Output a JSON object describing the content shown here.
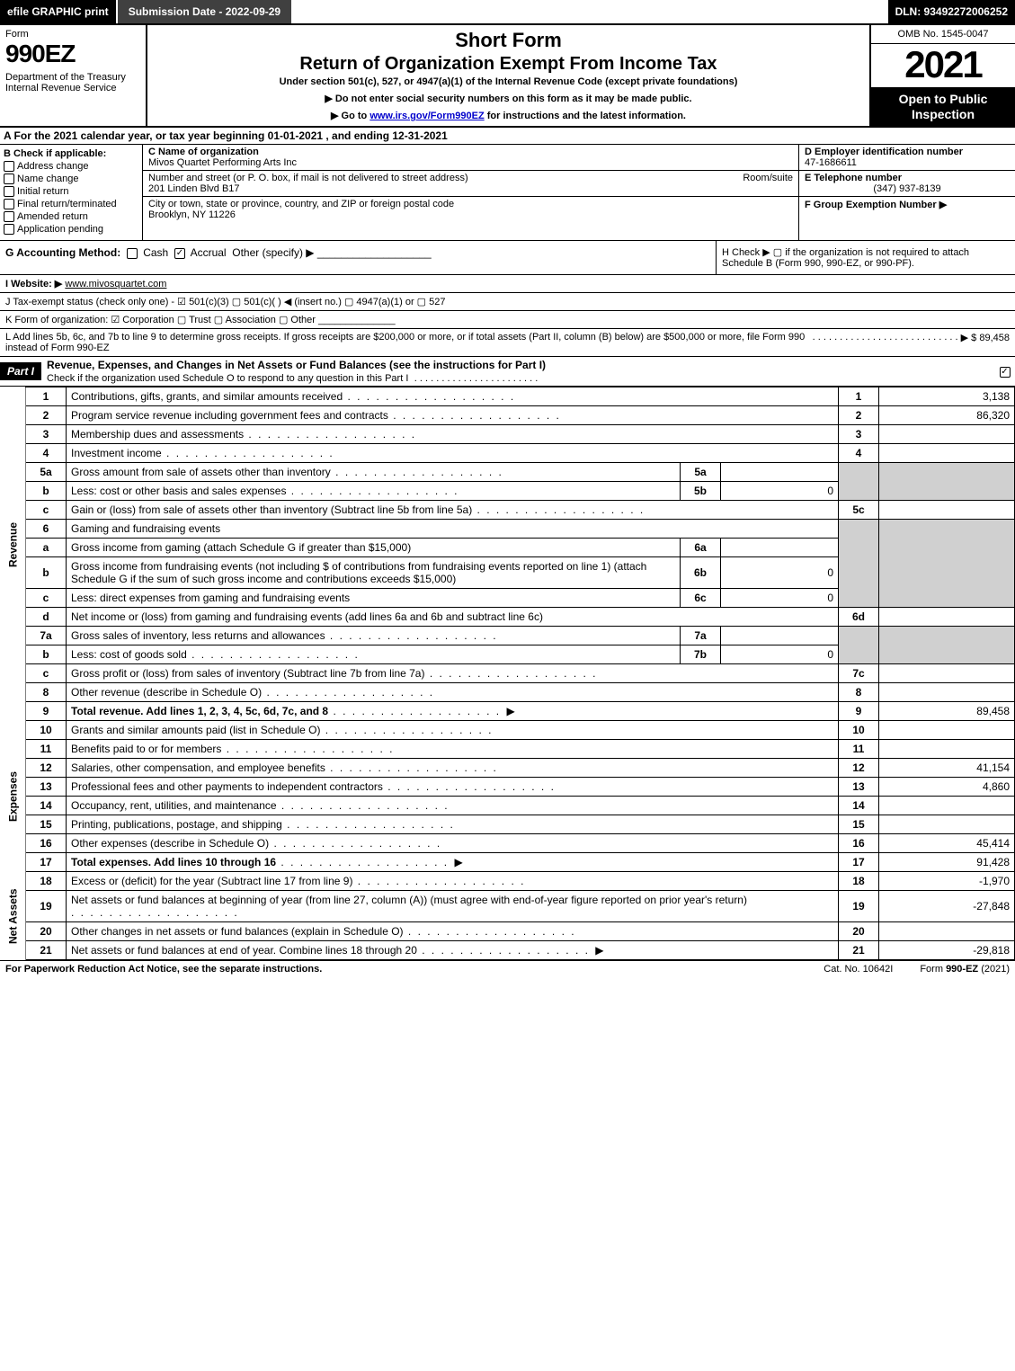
{
  "topbar": {
    "efile": "efile GRAPHIC print",
    "submission": "Submission Date - 2022-09-29",
    "dln": "DLN: 93492272006252"
  },
  "header": {
    "form_label": "Form",
    "form_number": "990EZ",
    "dept": "Department of the Treasury\nInternal Revenue Service",
    "short_form": "Short Form",
    "main_title": "Return of Organization Exempt From Income Tax",
    "subtitle": "Under section 501(c), 527, or 4947(a)(1) of the Internal Revenue Code (except private foundations)",
    "instruct1": "▶ Do not enter social security numbers on this form as it may be made public.",
    "instruct2_pre": "▶ Go to ",
    "instruct2_link": "www.irs.gov/Form990EZ",
    "instruct2_post": " for instructions and the latest information.",
    "omb": "OMB No. 1545-0047",
    "year": "2021",
    "open_public": "Open to Public Inspection"
  },
  "sectionA": "A  For the 2021 calendar year, or tax year beginning 01-01-2021 , and ending 12-31-2021",
  "sectionB": {
    "label": "B  Check if applicable:",
    "items": [
      "Address change",
      "Name change",
      "Initial return",
      "Final return/terminated",
      "Amended return",
      "Application pending"
    ]
  },
  "sectionC": {
    "name_lbl": "C Name of organization",
    "name_val": "Mivos Quartet Performing Arts Inc",
    "street_lbl": "Number and street (or P. O. box, if mail is not delivered to street address)",
    "room_lbl": "Room/suite",
    "street_val": "201 Linden Blvd B17",
    "city_lbl": "City or town, state or province, country, and ZIP or foreign postal code",
    "city_val": "Brooklyn, NY  11226"
  },
  "sectionD": {
    "ein_lbl": "D Employer identification number",
    "ein_val": "47-1686611",
    "tel_lbl": "E Telephone number",
    "tel_val": "(347) 937-8139",
    "grp_lbl": "F Group Exemption Number  ▶"
  },
  "rowG": {
    "lbl": "G Accounting Method:",
    "cash": "Cash",
    "accrual": "Accrual",
    "other": "Other (specify) ▶"
  },
  "rowH": {
    "text": "H  Check ▶  ▢  if the organization is not required to attach Schedule B (Form 990, 990-EZ, or 990-PF)."
  },
  "rowI": {
    "lbl": "I Website: ▶",
    "val": "www.mivosquartet.com"
  },
  "rowJ": "J Tax-exempt status (check only one) -  ☑ 501(c)(3)  ▢ 501(c)(  ) ◀ (insert no.)  ▢ 4947(a)(1) or  ▢ 527",
  "rowK": "K Form of organization:  ☑ Corporation  ▢ Trust  ▢ Association  ▢ Other",
  "rowL": {
    "text": "L Add lines 5b, 6c, and 7b to line 9 to determine gross receipts. If gross receipts are $200,000 or more, or if total assets (Part II, column (B) below) are $500,000 or more, file Form 990 instead of Form 990-EZ",
    "amount": "▶ $ 89,458"
  },
  "part1": {
    "label": "Part I",
    "title": "Revenue, Expenses, and Changes in Net Assets or Fund Balances (see the instructions for Part I)",
    "sub": "Check if the organization used Schedule O to respond to any question in this Part I"
  },
  "sideLabels": {
    "revenue": "Revenue",
    "expenses": "Expenses",
    "netassets": "Net Assets"
  },
  "lines": {
    "l1": {
      "n": "1",
      "d": "Contributions, gifts, grants, and similar amounts received",
      "bn": "1",
      "bv": "3,138"
    },
    "l2": {
      "n": "2",
      "d": "Program service revenue including government fees and contracts",
      "bn": "2",
      "bv": "86,320"
    },
    "l3": {
      "n": "3",
      "d": "Membership dues and assessments",
      "bn": "3",
      "bv": ""
    },
    "l4": {
      "n": "4",
      "d": "Investment income",
      "bn": "4",
      "bv": ""
    },
    "l5a": {
      "n": "5a",
      "d": "Gross amount from sale of assets other than inventory",
      "mn": "5a",
      "mv": ""
    },
    "l5b": {
      "n": "b",
      "d": "Less: cost or other basis and sales expenses",
      "mn": "5b",
      "mv": "0"
    },
    "l5c": {
      "n": "c",
      "d": "Gain or (loss) from sale of assets other than inventory (Subtract line 5b from line 5a)",
      "bn": "5c",
      "bv": ""
    },
    "l6": {
      "n": "6",
      "d": "Gaming and fundraising events"
    },
    "l6a": {
      "n": "a",
      "d": "Gross income from gaming (attach Schedule G if greater than $15,000)",
      "mn": "6a",
      "mv": ""
    },
    "l6b": {
      "n": "b",
      "d": "Gross income from fundraising events (not including $                 of contributions from fundraising events reported on line 1) (attach Schedule G if the sum of such gross income and contributions exceeds $15,000)",
      "mn": "6b",
      "mv": "0"
    },
    "l6c": {
      "n": "c",
      "d": "Less: direct expenses from gaming and fundraising events",
      "mn": "6c",
      "mv": "0"
    },
    "l6d": {
      "n": "d",
      "d": "Net income or (loss) from gaming and fundraising events (add lines 6a and 6b and subtract line 6c)",
      "bn": "6d",
      "bv": ""
    },
    "l7a": {
      "n": "7a",
      "d": "Gross sales of inventory, less returns and allowances",
      "mn": "7a",
      "mv": ""
    },
    "l7b": {
      "n": "b",
      "d": "Less: cost of goods sold",
      "mn": "7b",
      "mv": "0"
    },
    "l7c": {
      "n": "c",
      "d": "Gross profit or (loss) from sales of inventory (Subtract line 7b from line 7a)",
      "bn": "7c",
      "bv": ""
    },
    "l8": {
      "n": "8",
      "d": "Other revenue (describe in Schedule O)",
      "bn": "8",
      "bv": ""
    },
    "l9": {
      "n": "9",
      "d": "Total revenue. Add lines 1, 2, 3, 4, 5c, 6d, 7c, and 8",
      "bn": "9",
      "bv": "89,458",
      "bold": true,
      "arrow": true
    },
    "l10": {
      "n": "10",
      "d": "Grants and similar amounts paid (list in Schedule O)",
      "bn": "10",
      "bv": ""
    },
    "l11": {
      "n": "11",
      "d": "Benefits paid to or for members",
      "bn": "11",
      "bv": ""
    },
    "l12": {
      "n": "12",
      "d": "Salaries, other compensation, and employee benefits",
      "bn": "12",
      "bv": "41,154"
    },
    "l13": {
      "n": "13",
      "d": "Professional fees and other payments to independent contractors",
      "bn": "13",
      "bv": "4,860"
    },
    "l14": {
      "n": "14",
      "d": "Occupancy, rent, utilities, and maintenance",
      "bn": "14",
      "bv": ""
    },
    "l15": {
      "n": "15",
      "d": "Printing, publications, postage, and shipping",
      "bn": "15",
      "bv": ""
    },
    "l16": {
      "n": "16",
      "d": "Other expenses (describe in Schedule O)",
      "bn": "16",
      "bv": "45,414"
    },
    "l17": {
      "n": "17",
      "d": "Total expenses. Add lines 10 through 16",
      "bn": "17",
      "bv": "91,428",
      "bold": true,
      "arrow": true
    },
    "l18": {
      "n": "18",
      "d": "Excess or (deficit) for the year (Subtract line 17 from line 9)",
      "bn": "18",
      "bv": "-1,970"
    },
    "l19": {
      "n": "19",
      "d": "Net assets or fund balances at beginning of year (from line 27, column (A)) (must agree with end-of-year figure reported on prior year's return)",
      "bn": "19",
      "bv": "-27,848"
    },
    "l20": {
      "n": "20",
      "d": "Other changes in net assets or fund balances (explain in Schedule O)",
      "bn": "20",
      "bv": ""
    },
    "l21": {
      "n": "21",
      "d": "Net assets or fund balances at end of year. Combine lines 18 through 20",
      "bn": "21",
      "bv": "-29,818",
      "arrow": true
    }
  },
  "footer": {
    "left": "For Paperwork Reduction Act Notice, see the separate instructions.",
    "mid": "Cat. No. 10642I",
    "right_pre": "Form ",
    "right_bold": "990-EZ",
    "right_post": " (2021)"
  },
  "colors": {
    "black": "#000000",
    "white": "#ffffff",
    "darkgray": "#404040",
    "shade": "#d0d0d0",
    "link": "#0000cc"
  }
}
